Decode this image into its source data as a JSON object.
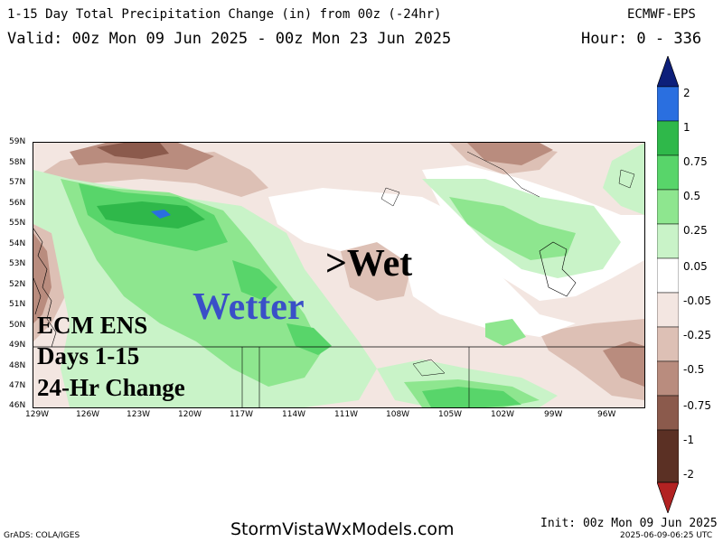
{
  "header": {
    "title": "1-15 Day Total Precipitation Change (in) from 00z (-24hr)",
    "model": "ECMWF-EPS",
    "valid": "Valid: 00z Mon 09 Jun 2025 - 00z Mon 23 Jun 2025",
    "hour": "Hour: 0 - 336"
  },
  "map": {
    "lat_labels": [
      "59N",
      "58N",
      "57N",
      "56N",
      "55N",
      "54N",
      "53N",
      "52N",
      "51N",
      "50N",
      "49N",
      "48N",
      "47N",
      "46N"
    ],
    "lon_labels": [
      "129W",
      "126W",
      "123W",
      "120W",
      "117W",
      "114W",
      "111W",
      "108W",
      "105W",
      "102W",
      "99W",
      "96W"
    ],
    "annotations": {
      "wet": ">Wet",
      "wetter": "Wetter",
      "info_line1": "ECM ENS",
      "info_line2": "Days 1-15",
      "info_line3": "24-Hr Change"
    },
    "colors": {
      "wet_annotation": "#000000",
      "wetter_annotation": "#3a4fc8"
    }
  },
  "colorbar": {
    "labels": [
      "2",
      "1",
      "0.75",
      "0.5",
      "0.25",
      "0.05",
      "-0.05",
      "-0.25",
      "-0.5",
      "-0.75",
      "-1",
      "-2"
    ],
    "bins": [
      {
        "color": "#0d1f7a"
      },
      {
        "color": "#2a6fe0"
      },
      {
        "color": "#2fb84a"
      },
      {
        "color": "#58d56a"
      },
      {
        "color": "#8ee68f"
      },
      {
        "color": "#c9f3c8"
      },
      {
        "color": "#ffffff"
      },
      {
        "color": "#f3e6e1"
      },
      {
        "color": "#ddc0b5"
      },
      {
        "color": "#b98c7e"
      },
      {
        "color": "#8b5a4c"
      },
      {
        "color": "#5b3024"
      },
      {
        "color": "#b22222"
      }
    ]
  },
  "footer": {
    "left": "GrADS: COLA/IGES",
    "center": "StormVistaWxModels.com",
    "init": "Init: 00z Mon 09 Jun 2025",
    "timestamp": "2025-06-09-06:25 UTC"
  }
}
